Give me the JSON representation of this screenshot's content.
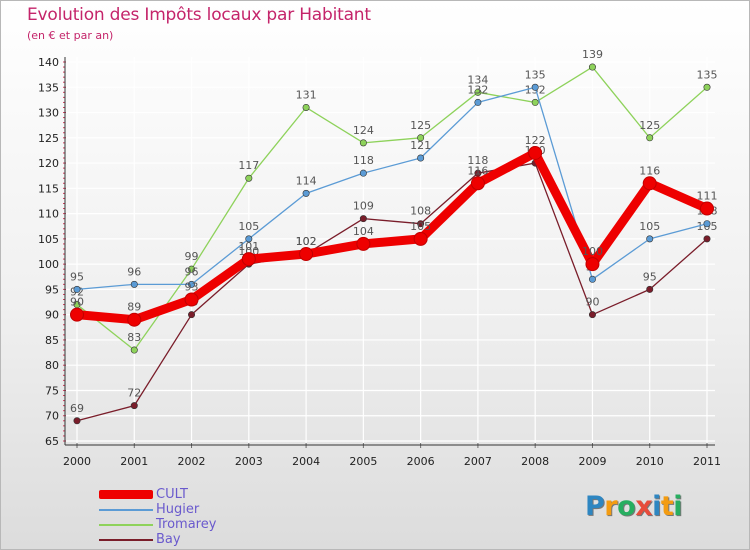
{
  "chart_data": {
    "type": "line",
    "title": "Evolution des Impôts locaux par Habitant",
    "subtitle": "(en € et par an)",
    "xlabel": "",
    "ylabel": "",
    "x": [
      "2000",
      "2001",
      "2002",
      "2003",
      "2004",
      "2005",
      "2006",
      "2007",
      "2008",
      "2009",
      "2010",
      "2011"
    ],
    "ylim": [
      65,
      140
    ],
    "yticks": [
      "65",
      "70",
      "75",
      "80",
      "85",
      "90",
      "95",
      "100",
      "105",
      "110",
      "115",
      "120",
      "125",
      "130",
      "135",
      "140"
    ],
    "series": [
      {
        "name": "Bay",
        "color": "#7a1d2a",
        "values": [
          69,
          72,
          90,
          100,
          102,
          109,
          108,
          118,
          120,
          90,
          95,
          105
        ]
      },
      {
        "name": "Tromarey",
        "color": "#8ed25b",
        "values": [
          92,
          83,
          99,
          117,
          131,
          124,
          125,
          134,
          132,
          139,
          125,
          135
        ]
      },
      {
        "name": "Hugier",
        "color": "#5b9bd5",
        "values": [
          95,
          96,
          96,
          105,
          114,
          118,
          121,
          132,
          135,
          97,
          105,
          108
        ]
      },
      {
        "name": "CULT",
        "color": "#ee0000",
        "values": [
          90,
          89,
          93,
          101,
          102,
          104,
          105,
          116,
          122,
          100,
          116,
          111
        ]
      }
    ],
    "legend": [
      "CULT",
      "Hugier",
      "Tromarey",
      "Bay"
    ],
    "legend_position": "bottom-left",
    "grid": true
  },
  "brand": {
    "letters": [
      "P",
      "r",
      "o",
      "x",
      "i",
      "t",
      "i"
    ],
    "colors": [
      "#2e86c1",
      "#f39c12",
      "#27ae60",
      "#e74c3c",
      "#2e86c1",
      "#f39c12",
      "#27ae60"
    ]
  }
}
